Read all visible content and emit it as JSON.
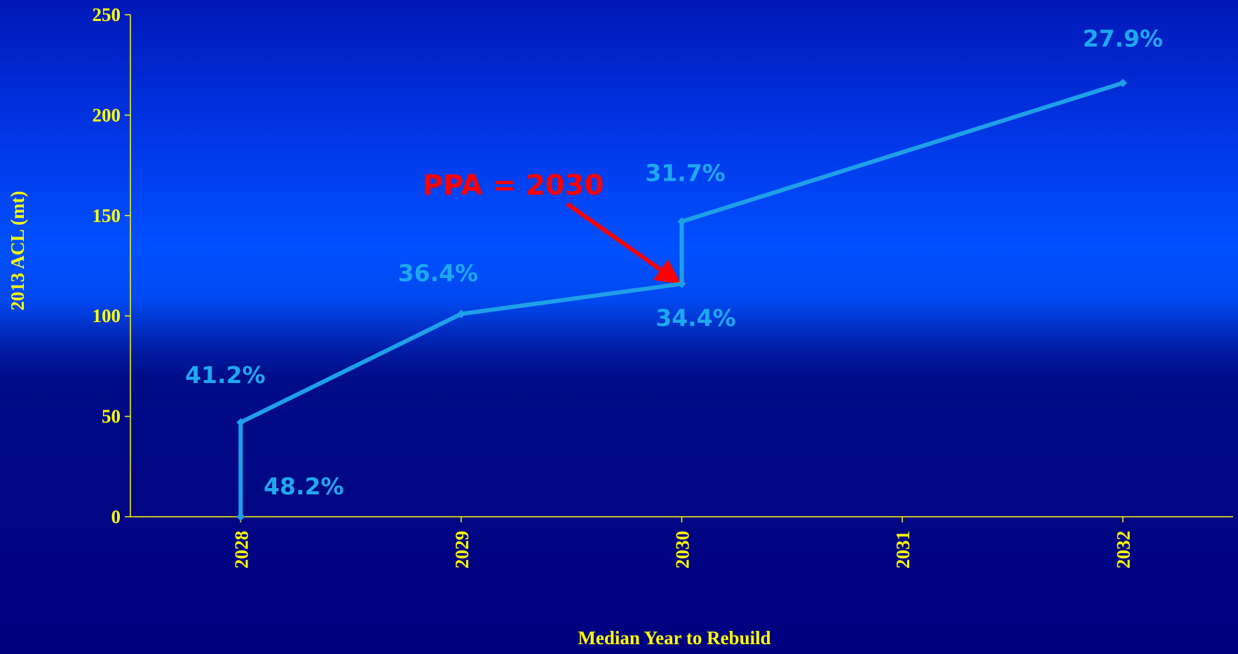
{
  "chart_data": {
    "type": "line",
    "x_label": "Median Year to Rebuild",
    "y_label": "2013 ACL  (mt)",
    "annotation": "PPA = 2030",
    "x": [
      2028,
      2028,
      2029,
      2030,
      2030,
      2032
    ],
    "series": [
      {
        "color": "#1ea0e8",
        "values": [
          0,
          47,
          101,
          116,
          147,
          216
        ],
        "point_labels": [
          "48.2%",
          "41.2%",
          "36.4%",
          "34.4%",
          "31.7%",
          "27.9%"
        ]
      }
    ],
    "xlim": [
      2027.5,
      2032.5
    ],
    "xticks": [
      2028,
      2029,
      2030,
      2031,
      2032
    ],
    "ylim": [
      0,
      250
    ],
    "yticks": [
      0,
      50,
      100,
      150,
      200,
      250
    ]
  }
}
